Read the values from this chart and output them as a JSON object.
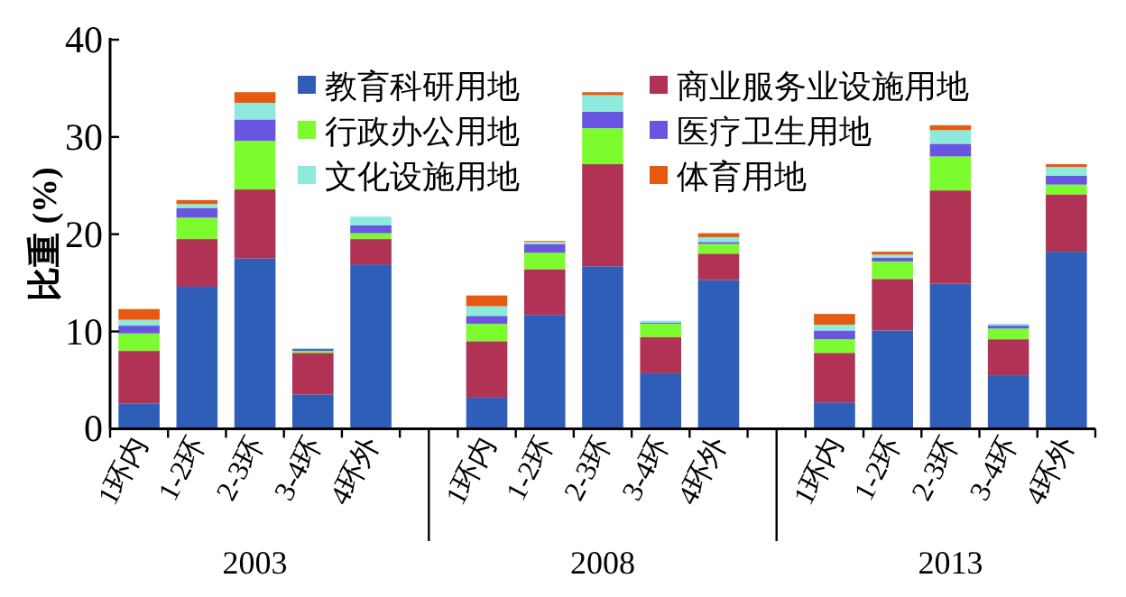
{
  "chart_data": {
    "type": "bar",
    "stacked": true,
    "ylabel": "比重 (%)",
    "ylim": [
      0,
      40
    ],
    "yticks": [
      0,
      10,
      20,
      30,
      40
    ],
    "legend": "top",
    "categories": [
      "1环内",
      "1-2环",
      "2-3环",
      "3-4环",
      "4环外",
      null,
      "1环内",
      "1-2环",
      "2-3环",
      "3-4环",
      "4环外",
      null,
      "1环内",
      "1-2环",
      "2-3环",
      "3-4环",
      "4环外"
    ],
    "annotations": [
      "2003",
      "2008",
      "2013"
    ],
    "series": [
      {
        "name": "教育科研用地",
        "color": "#2e5eb8",
        "values": [
          2.6,
          14.6,
          17.5,
          3.5,
          16.9,
          null,
          3.2,
          11.7,
          16.7,
          5.7,
          15.3,
          null,
          2.7,
          10.1,
          14.9,
          5.5,
          18.2
        ]
      },
      {
        "name": "商业服务业设施用地",
        "color": "#b03254",
        "values": [
          5.4,
          4.9,
          7.1,
          4.3,
          2.6,
          null,
          5.8,
          4.7,
          10.5,
          3.7,
          2.7,
          null,
          5.1,
          5.3,
          9.6,
          3.7,
          5.9
        ]
      },
      {
        "name": "行政办公用地",
        "color": "#7cfc2e",
        "values": [
          1.8,
          2.2,
          5.0,
          0.2,
          0.6,
          null,
          1.8,
          1.7,
          3.7,
          1.4,
          1.0,
          null,
          1.4,
          1.8,
          3.5,
          1.1,
          1.0
        ]
      },
      {
        "name": "医疗卫生用地",
        "color": "#6a55e0",
        "values": [
          0.8,
          1.0,
          2.2,
          0.2,
          0.8,
          null,
          0.8,
          0.9,
          1.7,
          0.1,
          0.2,
          null,
          0.9,
          0.4,
          1.3,
          0.3,
          0.9
        ]
      },
      {
        "name": "文化设施用地",
        "color": "#8eeadc",
        "values": [
          0.6,
          0.4,
          1.7,
          0.1,
          0.9,
          null,
          1.0,
          0.2,
          1.7,
          0.2,
          0.5,
          null,
          0.6,
          0.3,
          1.4,
          0.2,
          0.9
        ]
      },
      {
        "name": "体育用地",
        "color": "#e55a10",
        "values": [
          1.1,
          0.4,
          1.1,
          0,
          0,
          null,
          1.1,
          0.1,
          0.3,
          0,
          0.4,
          null,
          1.1,
          0.3,
          0.5,
          0,
          0.3
        ]
      }
    ]
  }
}
